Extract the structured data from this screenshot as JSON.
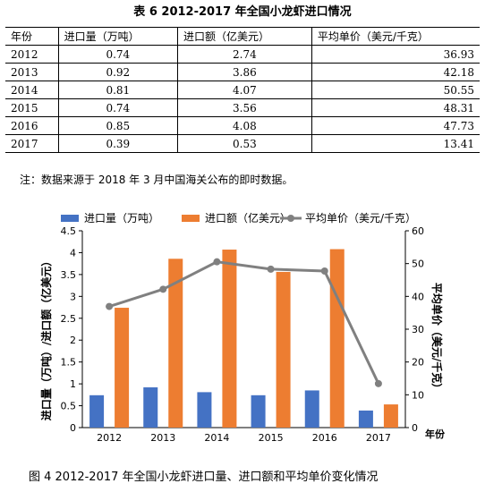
{
  "table": {
    "title": "表 6 2012-2017 年全国小龙虾进口情况",
    "headers": [
      "年份",
      "进口量（万吨）",
      "进口额（亿美元）",
      "平均单价（美元/千克）"
    ],
    "rows": [
      [
        "2012",
        "0.74",
        "2.74",
        "36.93"
      ],
      [
        "2013",
        "0.92",
        "3.86",
        "42.18"
      ],
      [
        "2014",
        "0.81",
        "4.07",
        "50.55"
      ],
      [
        "2015",
        "0.74",
        "3.56",
        "48.31"
      ],
      [
        "2016",
        "0.85",
        "4.08",
        "47.73"
      ],
      [
        "2017",
        "0.39",
        "0.53",
        "13.41"
      ]
    ]
  },
  "note": "注：数据来源于 2018 年 3 月中国海关公布的即时数据。",
  "chart_data": {
    "type": "bar",
    "categories": [
      "2012",
      "2013",
      "2014",
      "2015",
      "2016",
      "2017"
    ],
    "series": [
      {
        "name": "进口量（万吨）",
        "kind": "bar",
        "axis": "left",
        "color": "#4472C4",
        "values": [
          0.74,
          0.92,
          0.81,
          0.74,
          0.85,
          0.39
        ]
      },
      {
        "name": "进口额（亿美元）",
        "kind": "bar",
        "axis": "left",
        "color": "#ED7D31",
        "values": [
          2.74,
          3.86,
          4.07,
          3.56,
          4.08,
          0.53
        ]
      },
      {
        "name": "平均单价（美元/千克）",
        "kind": "line",
        "axis": "right",
        "color": "#808080",
        "values": [
          36.93,
          42.18,
          50.55,
          48.31,
          47.73,
          13.41
        ]
      }
    ],
    "ylabel": "进口量（万吨）/进口额（亿美元）",
    "y2label": "平均单价（美元/千克）",
    "xlabel": "年份",
    "ylim": [
      0,
      4.5
    ],
    "y2lim": [
      0,
      60
    ],
    "yticks": [
      "0",
      "0.5",
      "1",
      "1.5",
      "2",
      "2.5",
      "3",
      "3.5",
      "4",
      "4.5"
    ],
    "y2ticks": [
      "0",
      "10",
      "20",
      "30",
      "40",
      "50",
      "60"
    ],
    "legend_position": "top",
    "grid": false
  },
  "caption": "图 4    2012-2017 年全国小龙虾进口量、进口额和平均单价变化情况"
}
